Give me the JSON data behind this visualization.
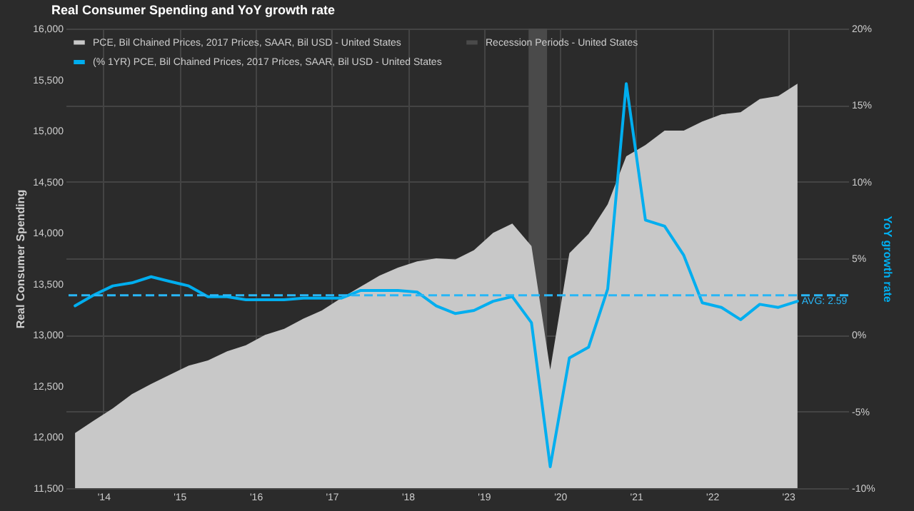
{
  "chart_data": {
    "type": "area",
    "title": "Real Consumer Spending and YoY growth rate",
    "ylabel": "Real Consumer Spending",
    "y2label": "YoY growth rate",
    "x": [
      "2014-02-15",
      "2014-05-15",
      "2014-08-15",
      "2014-11-15",
      "2015-02-15",
      "2015-05-15",
      "2015-08-15",
      "2015-11-15",
      "2016-02-15",
      "2016-05-15",
      "2016-08-15",
      "2016-11-15",
      "2017-02-15",
      "2017-05-15",
      "2017-08-15",
      "2017-11-15",
      "2018-02-15",
      "2018-05-15",
      "2018-08-15",
      "2018-11-15",
      "2019-02-15",
      "2019-05-15",
      "2019-08-15",
      "2019-11-15",
      "2020-02-15",
      "2020-05-15",
      "2020-08-15",
      "2020-11-15",
      "2021-02-15",
      "2021-05-15",
      "2021-08-15",
      "2021-11-15",
      "2022-02-15",
      "2022-05-15",
      "2022-08-15",
      "2022-11-15",
      "2023-02-15",
      "2023-05-15",
      "2023-08-15"
    ],
    "series": [
      {
        "name": "PCE, Bil Chained Prices, 2017 Prices, SAAR, Bil USD - United States",
        "color": "#c8c8c8",
        "values": [
          12040,
          12160,
          12280,
          12420,
          12520,
          12610,
          12700,
          12750,
          12840,
          12900,
          13000,
          13060,
          13160,
          13240,
          13360,
          13470,
          13580,
          13660,
          13720,
          13750,
          13740,
          13830,
          14000,
          14090,
          13870,
          12660,
          13800,
          13990,
          14280,
          14750,
          14860,
          15000,
          15000,
          15090,
          15160,
          15180,
          15310,
          15340,
          15460
        ]
      },
      {
        "name": "(% 1YR) PCE, Bil Chained Prices, 2017 Prices, SAAR, Bil USD - United States",
        "type": "line",
        "axis": "y2",
        "color": "#00aeef",
        "values": [
          1.9,
          2.6,
          3.2,
          3.4,
          3.8,
          3.5,
          3.2,
          2.5,
          2.5,
          2.3,
          2.3,
          2.3,
          2.4,
          2.4,
          2.4,
          2.9,
          2.9,
          2.9,
          2.8,
          1.9,
          1.4,
          1.6,
          2.2,
          2.5,
          0.8,
          -8.6,
          -1.5,
          -0.8,
          3.0,
          16.4,
          7.5,
          7.1,
          5.2,
          2.1,
          1.8,
          1.0,
          2.0,
          1.8,
          2.2
        ]
      }
    ],
    "bands": [
      {
        "axis": "x",
        "from": "2020-02-01",
        "to": "2020-04-30",
        "label": "Recession Periods - United States",
        "color": "#4a4a4a"
      }
    ],
    "ref_lines": [
      {
        "axis": "y2",
        "value": 2.59,
        "label": "AVG: 2.59",
        "color": "#29b6f6",
        "line_style": "dashed"
      }
    ],
    "xlim": [
      "2014-01-01",
      "2024-04-15"
    ],
    "xticks": [
      {
        "value": "2014-07-01",
        "label": "'14"
      },
      {
        "value": "2015-07-01",
        "label": "'15"
      },
      {
        "value": "2016-07-01",
        "label": "'16"
      },
      {
        "value": "2017-07-01",
        "label": "'17"
      },
      {
        "value": "2018-07-01",
        "label": "'18"
      },
      {
        "value": "2019-07-01",
        "label": "'19"
      },
      {
        "value": "2020-07-01",
        "label": "'20"
      },
      {
        "value": "2021-07-01",
        "label": "'21"
      },
      {
        "value": "2022-07-01",
        "label": "'22"
      },
      {
        "value": "2023-07-01",
        "label": "'23"
      }
    ],
    "ylim": [
      11500,
      16000
    ],
    "yticks": [
      {
        "value": 11500,
        "label": "11,500"
      },
      {
        "value": 12000,
        "label": "12,000"
      },
      {
        "value": 12500,
        "label": "12,500"
      },
      {
        "value": 13000,
        "label": "13,000"
      },
      {
        "value": 13500,
        "label": "13,500"
      },
      {
        "value": 14000,
        "label": "14,000"
      },
      {
        "value": 14500,
        "label": "14,500"
      },
      {
        "value": 15000,
        "label": "15,000"
      },
      {
        "value": 15500,
        "label": "15,500"
      },
      {
        "value": 16000,
        "label": "16,000"
      }
    ],
    "y2lim": [
      -10,
      20
    ],
    "y2ticks": [
      {
        "value": -10,
        "label": "-10%"
      },
      {
        "value": -5,
        "label": "-5%"
      },
      {
        "value": 0,
        "label": "0%"
      },
      {
        "value": 5,
        "label": "5%"
      },
      {
        "value": 10,
        "label": "10%"
      },
      {
        "value": 15,
        "label": "15%"
      },
      {
        "value": 20,
        "label": "20%"
      }
    ],
    "grid": true,
    "legend": "top left",
    "marker": "none",
    "line_style": "solid"
  }
}
